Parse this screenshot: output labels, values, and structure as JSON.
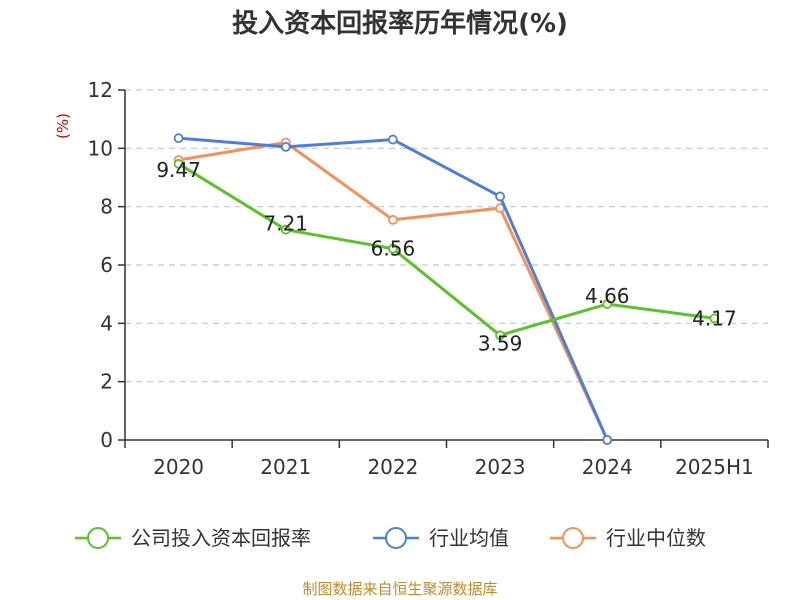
{
  "chart_data": {
    "type": "line",
    "title": "投入资本回报率历年情况(%)",
    "y_unit": "(%)",
    "categories": [
      "2020",
      "2021",
      "2022",
      "2023",
      "2024",
      "2025H1"
    ],
    "ylim": [
      0,
      12
    ],
    "yticks": [
      "0",
      "2",
      "4",
      "6",
      "8",
      "10",
      "12"
    ],
    "grid": true,
    "legend_position": "bottom",
    "series": [
      {
        "name": "公司投入资本回报率",
        "color": "#5cc22a",
        "values": [
          9.47,
          7.21,
          6.56,
          3.59,
          4.66,
          4.17
        ],
        "labels": [
          "9.47",
          "7.21",
          "6.56",
          "3.59",
          "4.66",
          "4.17"
        ]
      },
      {
        "name": "行业均值",
        "color": "#4d7fd8",
        "values": [
          10.35,
          10.05,
          10.3,
          8.35,
          0,
          null
        ]
      },
      {
        "name": "行业中位数",
        "color": "#f5905a",
        "values": [
          9.6,
          10.2,
          7.55,
          7.95,
          0,
          null
        ]
      }
    ],
    "source": "制图数据来自恒生聚源数据库"
  }
}
